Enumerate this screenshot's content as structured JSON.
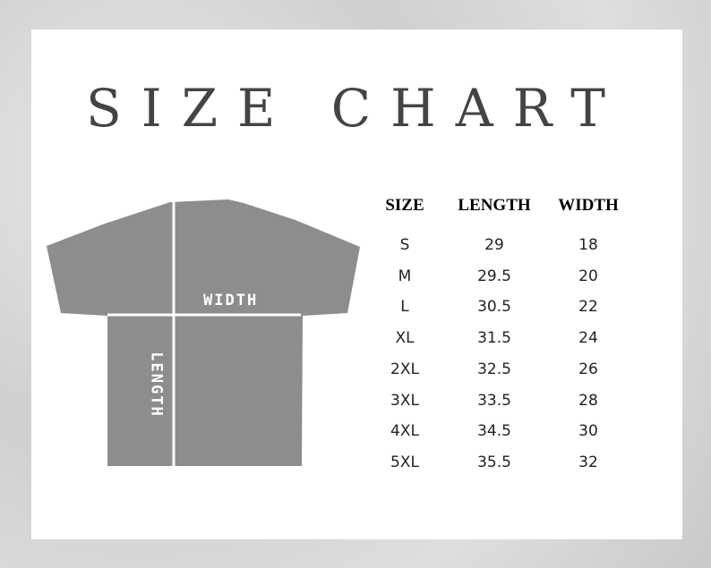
{
  "title": "SIZE CHART",
  "diagram": {
    "width_label": "WIDTH",
    "length_label": "LENGTH",
    "shirt_color": "#8d8d8d"
  },
  "table": {
    "headers": [
      "SIZE",
      "LENGTH",
      "WIDTH"
    ],
    "rows": [
      [
        "S",
        "29",
        "18"
      ],
      [
        "M",
        "29.5",
        "20"
      ],
      [
        "L",
        "30.5",
        "22"
      ],
      [
        "XL",
        "31.5",
        "24"
      ],
      [
        "2XL",
        "32.5",
        "26"
      ],
      [
        "3XL",
        "33.5",
        "28"
      ],
      [
        "4XL",
        "34.5",
        "30"
      ],
      [
        "5XL",
        "35.5",
        "32"
      ]
    ]
  }
}
